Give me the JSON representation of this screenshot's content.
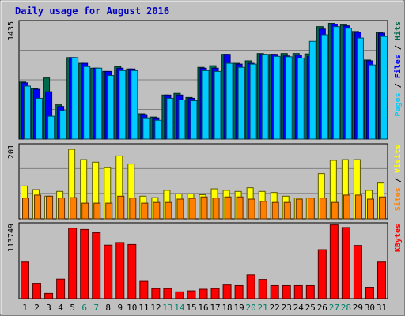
{
  "title": "Daily usage for August 2016",
  "colors": {
    "background": "#c0c0c0",
    "title": "#0000c0",
    "hits": "#006b4c",
    "files": "#0000ff",
    "pages": "#00ccff",
    "visits": "#ffff00",
    "sites": "#ff8000",
    "kbytes": "#ff0000",
    "weekend_label": "#00806b",
    "weekday_label": "#000000"
  },
  "chart_data": [
    {
      "type": "bar",
      "panel": "top",
      "ytick_label": "1435",
      "ymax": 1435,
      "legend": [
        "Pages",
        "Files",
        "Hits"
      ],
      "categories": [
        "1",
        "2",
        "3",
        "4",
        "5",
        "6",
        "7",
        "8",
        "9",
        "10",
        "11",
        "12",
        "13",
        "14",
        "15",
        "16",
        "17",
        "18",
        "19",
        "20",
        "21",
        "22",
        "23",
        "24",
        "25",
        "26",
        "27",
        "28",
        "29",
        "30",
        "31"
      ],
      "weekend_days": [
        "6",
        "7",
        "13",
        "14",
        "20",
        "21",
        "27",
        "28"
      ],
      "series": [
        {
          "name": "Hits",
          "values": [
            700,
            620,
            750,
            420,
            1000,
            930,
            870,
            830,
            890,
            860,
            310,
            270,
            540,
            560,
            510,
            880,
            900,
            1040,
            930,
            960,
            1050,
            1040,
            1050,
            1050,
            1045,
            1380,
            1420,
            1400,
            1320,
            970,
            1310
          ]
        },
        {
          "name": "Files",
          "values": [
            690,
            610,
            580,
            400,
            1000,
            930,
            870,
            830,
            870,
            860,
            300,
            260,
            540,
            540,
            500,
            870,
            870,
            1040,
            920,
            930,
            1040,
            1040,
            1020,
            1030,
            1015,
            1350,
            1410,
            1390,
            1310,
            960,
            1300
          ]
        },
        {
          "name": "Pages",
          "values": [
            650,
            500,
            280,
            350,
            1000,
            890,
            870,
            780,
            840,
            840,
            260,
            230,
            500,
            480,
            470,
            840,
            830,
            930,
            880,
            920,
            1040,
            1015,
            1010,
            995,
            1200,
            1280,
            1380,
            1360,
            1240,
            910,
            1260
          ]
        }
      ]
    },
    {
      "type": "bar",
      "panel": "middle",
      "ytick_label": "201",
      "ymax": 201,
      "legend": [
        "Sites",
        "Visits"
      ],
      "series": [
        {
          "name": "Visits",
          "values": [
            90,
            80,
            62,
            75,
            190,
            162,
            155,
            140,
            172,
            150,
            62,
            58,
            78,
            68,
            68,
            66,
            82,
            78,
            75,
            85,
            75,
            72,
            62,
            57,
            57,
            124,
            160,
            162,
            162,
            78,
            98
          ]
        },
        {
          "name": "Sites",
          "values": [
            57,
            65,
            62,
            57,
            58,
            43,
            43,
            43,
            62,
            57,
            43,
            45,
            45,
            54,
            56,
            60,
            57,
            60,
            60,
            54,
            48,
            45,
            45,
            54,
            57,
            57,
            45,
            65,
            65,
            54,
            60
          ]
        }
      ]
    },
    {
      "type": "bar",
      "panel": "bottom",
      "ytick_label": "113749",
      "ymax": 113749,
      "legend": [
        "KBytes"
      ],
      "series": [
        {
          "name": "KBytes",
          "values": [
            56000,
            23500,
            8000,
            30000,
            108000,
            106000,
            101000,
            82000,
            86000,
            83000,
            26500,
            15500,
            15500,
            10500,
            12000,
            14500,
            15500,
            21000,
            20000,
            36500,
            29500,
            20000,
            20000,
            20000,
            20000,
            75000,
            113000,
            109000,
            81500,
            17500,
            56000
          ]
        }
      ]
    }
  ]
}
